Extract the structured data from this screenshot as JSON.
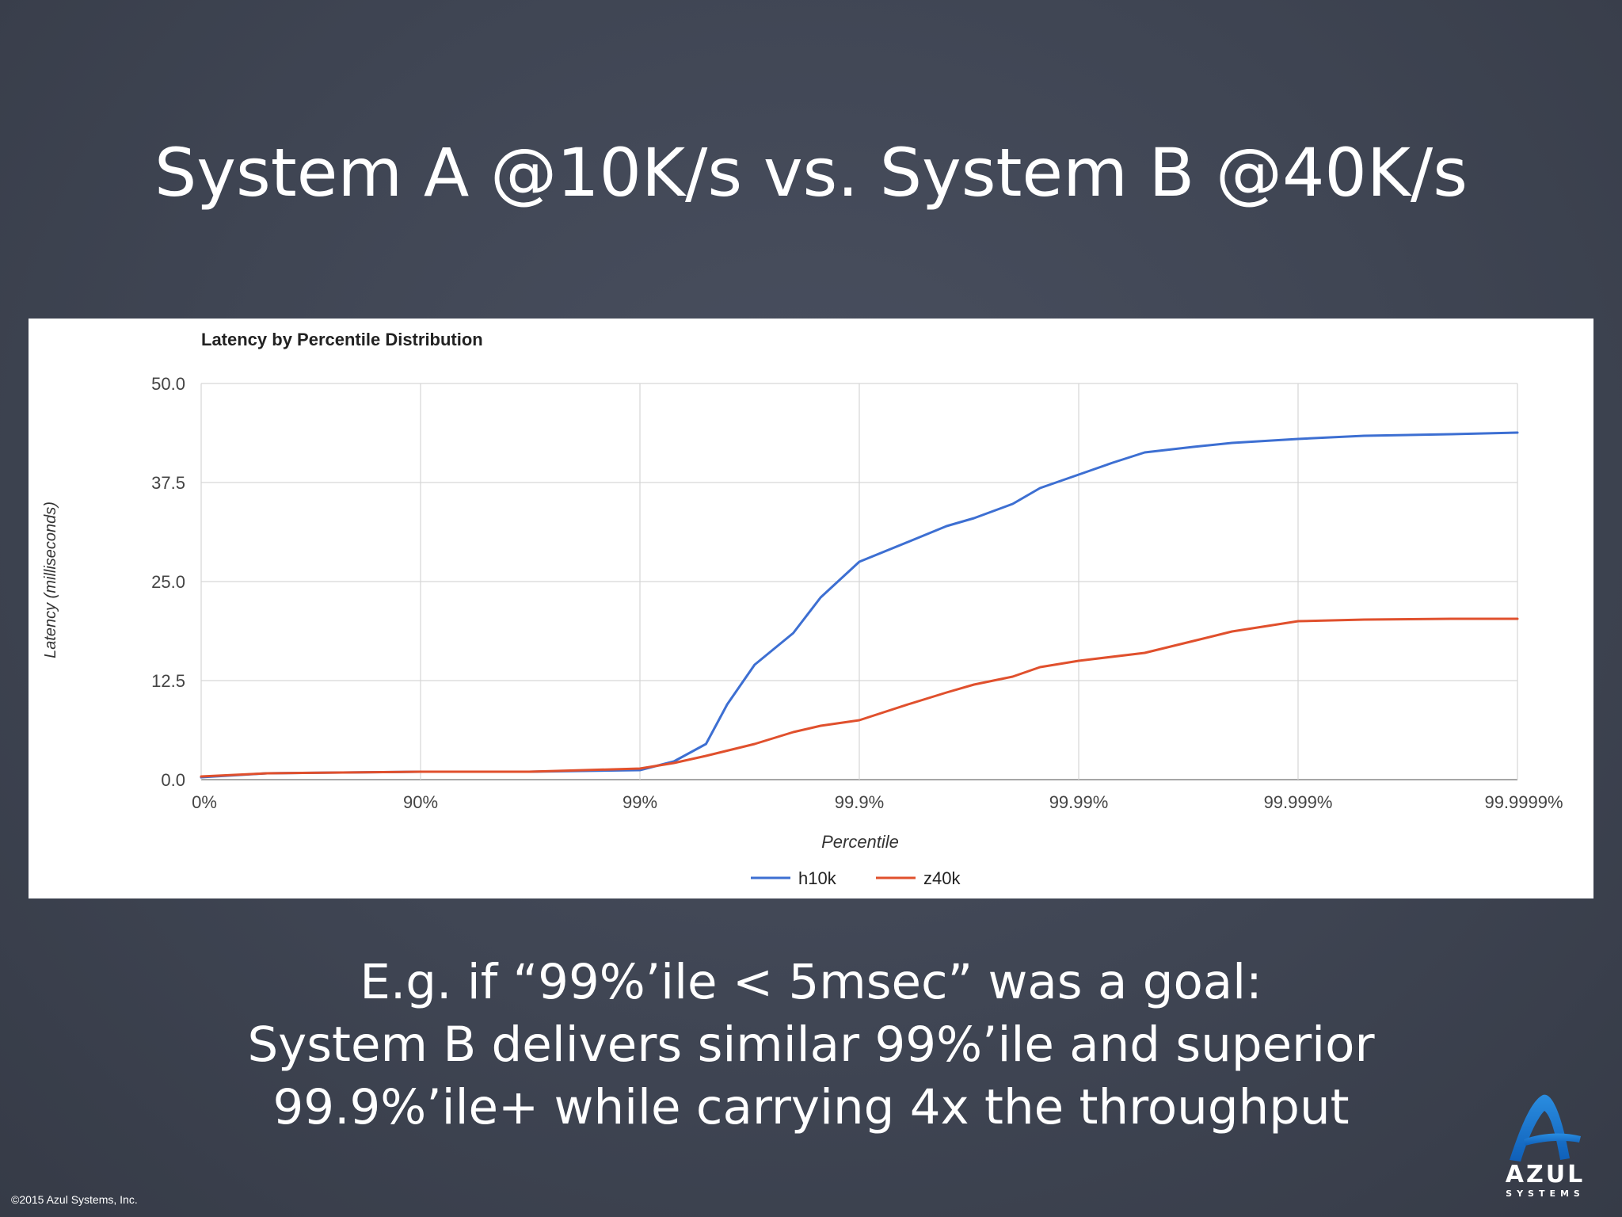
{
  "slide": {
    "title": "System A @10K/s vs. System B @40K/s",
    "body_lines": [
      "E.g. if “99%’ile < 5msec” was a goal:",
      "System B delivers similar 99%’ile and superior",
      "99.9%’ile+ while carrying 4x the throughput"
    ],
    "copyright": "©2015 Azul Systems, Inc.",
    "logo": {
      "name": "AZUL",
      "sub": "SYSTEMS",
      "icon": "azul-a-logo-icon"
    }
  },
  "chart_data": {
    "type": "line",
    "title": "Latency by Percentile Distribution",
    "xlabel": "Percentile",
    "ylabel": "Latency (milliseconds)",
    "x_scale": "log(1/(1-p))",
    "x_ticks": [
      "0%",
      "90%",
      "99%",
      "99.9%",
      "99.99%",
      "99.999%",
      "99.9999%"
    ],
    "y_ticks": [
      "0.0",
      "12.5",
      "25.0",
      "37.5",
      "50.0"
    ],
    "ylim": [
      0,
      50
    ],
    "grid": true,
    "legend": "bottom",
    "series": [
      {
        "name": "h10k",
        "color": "#3d6fd2",
        "points": [
          [
            "0%",
            0.3
          ],
          [
            "50%",
            0.8
          ],
          [
            "90%",
            1.0
          ],
          [
            "96.8%",
            1.0
          ],
          [
            "99%",
            1.2
          ],
          [
            "99.3%",
            2.3
          ],
          [
            "99.5%",
            4.5
          ],
          [
            "99.6%",
            9.5
          ],
          [
            "99.7%",
            14.5
          ],
          [
            "99.8%",
            18.5
          ],
          [
            "99.85%",
            23.0
          ],
          [
            "99.9%",
            27.5
          ],
          [
            "99.94%",
            30.0
          ],
          [
            "99.96%",
            32.0
          ],
          [
            "99.97%",
            33.0
          ],
          [
            "99.98%",
            34.8
          ],
          [
            "99.985%",
            36.8
          ],
          [
            "99.99%",
            38.5
          ],
          [
            "99.993%",
            40.0
          ],
          [
            "99.995%",
            41.3
          ],
          [
            "99.997%",
            42.0
          ],
          [
            "99.998%",
            42.5
          ],
          [
            "99.999%",
            43.0
          ],
          [
            "99.9995%",
            43.4
          ],
          [
            "99.9998%",
            43.6
          ],
          [
            "99.9999%",
            43.8
          ]
        ]
      },
      {
        "name": "z40k",
        "color": "#e0502d",
        "points": [
          [
            "0%",
            0.4
          ],
          [
            "50%",
            0.8
          ],
          [
            "90%",
            1.0
          ],
          [
            "96.8%",
            1.0
          ],
          [
            "99%",
            1.4
          ],
          [
            "99.3%",
            2.1
          ],
          [
            "99.5%",
            3.0
          ],
          [
            "99.7%",
            4.5
          ],
          [
            "99.8%",
            6.0
          ],
          [
            "99.85%",
            6.8
          ],
          [
            "99.9%",
            7.5
          ],
          [
            "99.94%",
            9.5
          ],
          [
            "99.96%",
            11.0
          ],
          [
            "99.97%",
            12.0
          ],
          [
            "99.98%",
            13.0
          ],
          [
            "99.985%",
            14.2
          ],
          [
            "99.99%",
            15.0
          ],
          [
            "99.995%",
            16.0
          ],
          [
            "99.997%",
            17.5
          ],
          [
            "99.998%",
            18.7
          ],
          [
            "99.999%",
            20.0
          ],
          [
            "99.9995%",
            20.2
          ],
          [
            "99.9998%",
            20.3
          ],
          [
            "99.9999%",
            20.3
          ]
        ]
      }
    ]
  }
}
